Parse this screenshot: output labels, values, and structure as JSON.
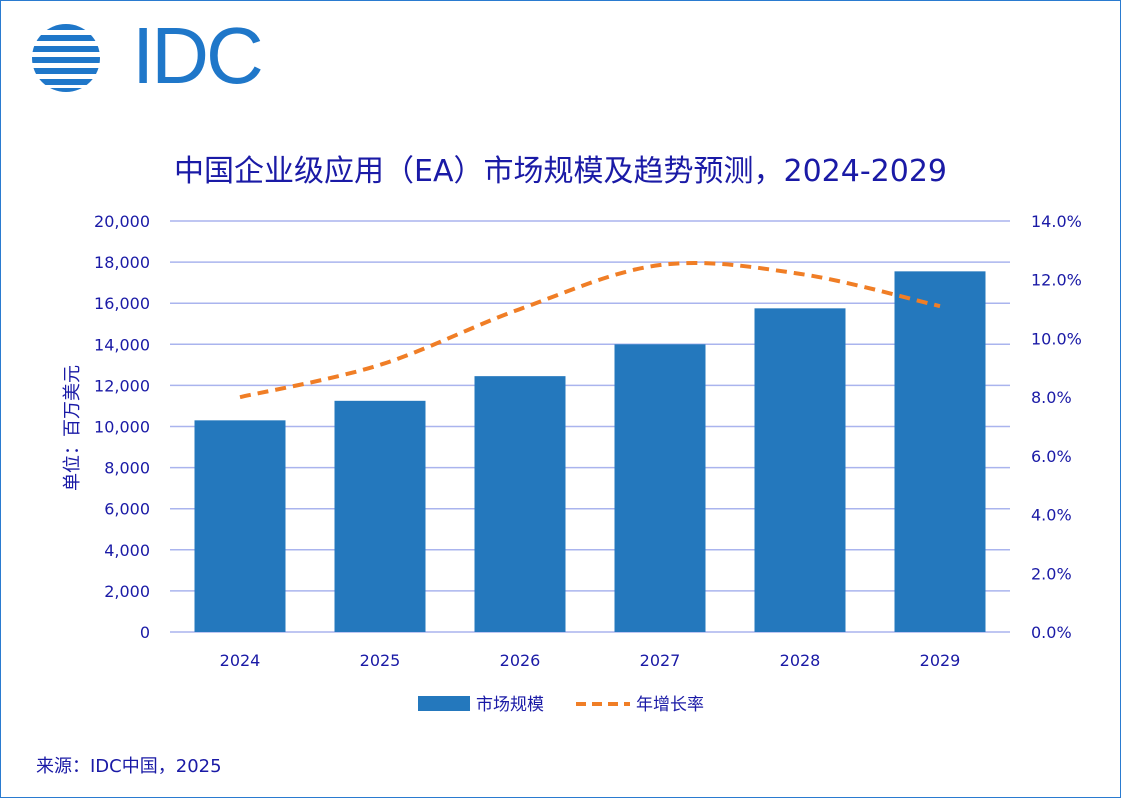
{
  "logo": {
    "text": "IDC",
    "color": "#1f77c9"
  },
  "chart_data": {
    "type": "bar",
    "title": "中国企业级应用（EA）市场规模及趋势预测，2024-2029",
    "ylabel": "单位：百万美元",
    "categories": [
      "2024",
      "2025",
      "2026",
      "2027",
      "2028",
      "2029"
    ],
    "series": [
      {
        "name": "市场规模",
        "type": "bar",
        "axis": "left",
        "color": "#2478bd",
        "values": [
          10300,
          11250,
          12450,
          14000,
          15750,
          17550
        ]
      },
      {
        "name": "年增长率",
        "type": "line",
        "style": "dashed",
        "axis": "right",
        "color": "#f07e26",
        "values": [
          8.0,
          9.1,
          11.0,
          12.5,
          12.2,
          11.1
        ]
      }
    ],
    "ylim_left": [
      0,
      20000
    ],
    "ylim_right": [
      0,
      14
    ],
    "left_ticks": [
      "0",
      "2,000",
      "4,000",
      "6,000",
      "8,000",
      "10,000",
      "12,000",
      "14,000",
      "16,000",
      "18,000",
      "20,000"
    ],
    "right_ticks": [
      "0.0%",
      "2.0%",
      "4.0%",
      "6.0%",
      "8.0%",
      "10.0%",
      "12.0%",
      "14.0%"
    ],
    "grid": true,
    "grid_color": "#aab4ee",
    "legend_position": "bottom"
  },
  "source": "来源：IDC中国，2025"
}
